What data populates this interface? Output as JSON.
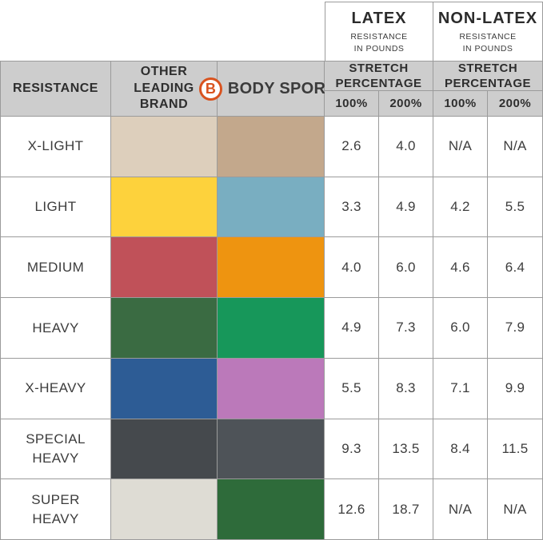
{
  "header": {
    "latex_box": {
      "title": "LATEX",
      "subtitle": "RESISTANCE IN POUNDS"
    },
    "non_latex_box": {
      "title": "NON-LATEX",
      "subtitle": "RESISTANCE IN POUNDS"
    },
    "resistance_label": "RESISTANCE",
    "other_brand_label": "OTHER LEADING BRAND",
    "brand": {
      "emblem_letter": "B",
      "name": "BODY SPORT",
      "tm": "™",
      "accent_color": "#d9531f"
    },
    "stretch_label": "STRETCH PERCENTAGE",
    "pct_100": "100%",
    "pct_200": "200%"
  },
  "colors": {
    "header_bg": "#cdcdcd",
    "border": "#9b9b9b",
    "text": "#3c3c3c"
  },
  "chart_data": {
    "type": "table",
    "title": "",
    "units": "RESISTANCE IN POUNDS",
    "columns": [
      "RESISTANCE",
      "OTHER LEADING BRAND",
      "BODY SPORT",
      "LATEX 100%",
      "LATEX 200%",
      "NON-LATEX 100%",
      "NON-LATEX 200%"
    ],
    "rows": [
      {
        "label": "X-LIGHT",
        "other_color": "#ddcfbc",
        "bodysport_color": "#c3a88c",
        "latex_100": "2.6",
        "latex_200": "4.0",
        "nonlatex_100": "N/A",
        "nonlatex_200": "N/A"
      },
      {
        "label": "LIGHT",
        "other_color": "#fdd23c",
        "bodysport_color": "#79aec1",
        "latex_100": "3.3",
        "latex_200": "4.9",
        "nonlatex_100": "4.2",
        "nonlatex_200": "5.5"
      },
      {
        "label": "MEDIUM",
        "other_color": "#c05159",
        "bodysport_color": "#ee9410",
        "latex_100": "4.0",
        "latex_200": "6.0",
        "nonlatex_100": "4.6",
        "nonlatex_200": "6.4"
      },
      {
        "label": "HEAVY",
        "other_color": "#3a6b42",
        "bodysport_color": "#17975a",
        "latex_100": "4.9",
        "latex_200": "7.3",
        "nonlatex_100": "6.0",
        "nonlatex_200": "7.9"
      },
      {
        "label": "X-HEAVY",
        "other_color": "#2d5c95",
        "bodysport_color": "#bb79ba",
        "latex_100": "5.5",
        "latex_200": "8.3",
        "nonlatex_100": "7.1",
        "nonlatex_200": "9.9"
      },
      {
        "label": "SPECIAL HEAVY",
        "other_color": "#45494d",
        "bodysport_color": "#4e5358",
        "latex_100": "9.3",
        "latex_200": "13.5",
        "nonlatex_100": "8.4",
        "nonlatex_200": "11.5"
      },
      {
        "label": "SUPER HEAVY",
        "other_color": "#dedcd4",
        "bodysport_color": "#2e6b3a",
        "latex_100": "12.6",
        "latex_200": "18.7",
        "nonlatex_100": "N/A",
        "nonlatex_200": "N/A"
      }
    ]
  }
}
